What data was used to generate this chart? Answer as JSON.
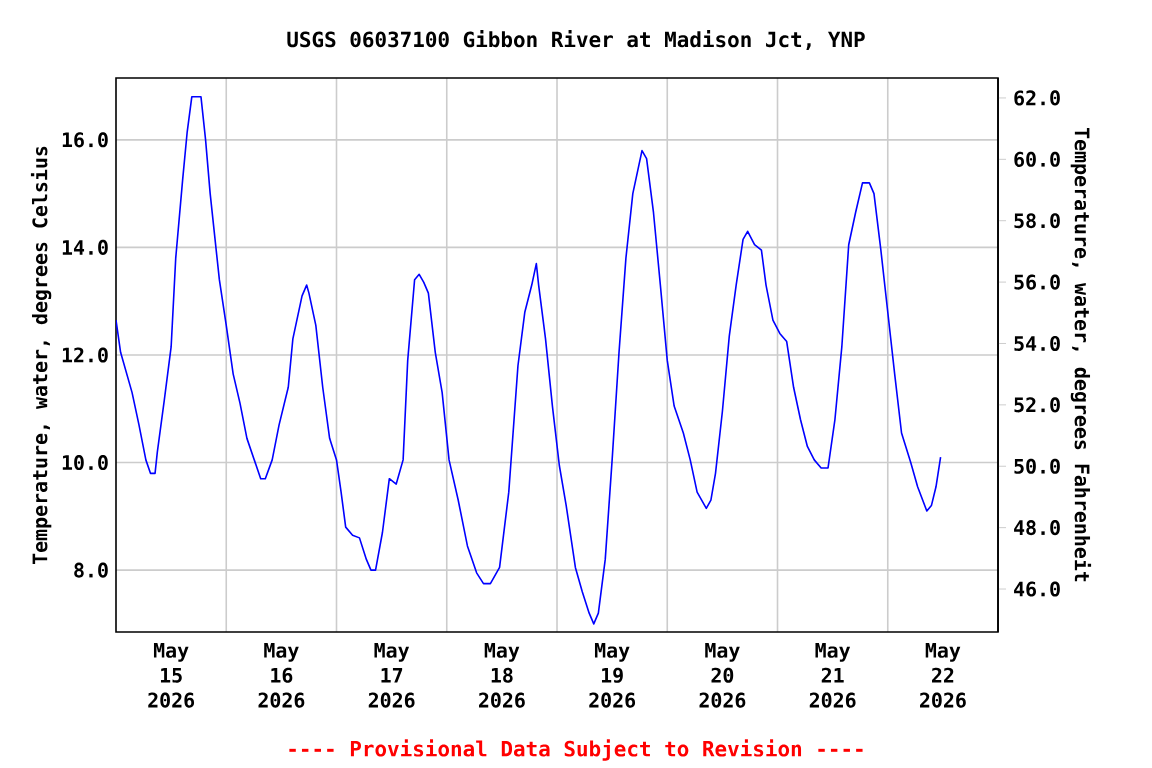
{
  "chart_data": {
    "type": "line",
    "title": "USGS 06037100 Gibbon River at Madison Jct, YNP",
    "ylabel": "Temperature, water, degrees Celsius",
    "y2label": "Temperature, water, degrees Fahrenheit",
    "annotations": [
      "---- Provisional Data Subject to Revision ----"
    ],
    "xlim": [
      "2026-05-15T00:00",
      "2026-05-23T00:00"
    ],
    "xticks": [
      {
        "value": "2026-05-15T12:00",
        "label": "May 15 2026"
      },
      {
        "value": "2026-05-16T12:00",
        "label": "May 16 2026"
      },
      {
        "value": "2026-05-17T12:00",
        "label": "May 17 2026"
      },
      {
        "value": "2026-05-18T12:00",
        "label": "May 18 2026"
      },
      {
        "value": "2026-05-19T12:00",
        "label": "May 19 2026"
      },
      {
        "value": "2026-05-20T12:00",
        "label": "May 20 2026"
      },
      {
        "value": "2026-05-21T12:00",
        "label": "May 21 2026"
      },
      {
        "value": "2026-05-22T12:00",
        "label": "May 22 2026"
      },
      {
        "value": "2026-05-16",
        "label": null
      },
      {
        "value": "2026-05-17",
        "label": null
      },
      {
        "value": "2026-05-18",
        "label": null
      },
      {
        "value": "2026-05-19",
        "label": null
      },
      {
        "value": "2026-05-20",
        "label": null
      },
      {
        "value": "2026-05-21",
        "label": null
      },
      {
        "value": "2026-05-22",
        "label": null
      }
    ],
    "ylim": [
      6.85,
      17.15
    ],
    "yticks": [
      {
        "value": 8,
        "label": "8.0"
      },
      {
        "value": 10,
        "label": "10.0"
      },
      {
        "value": 12,
        "label": "12.0"
      },
      {
        "value": 14,
        "label": "14.0"
      },
      {
        "value": 16,
        "label": "16.0"
      }
    ],
    "y2lim": [
      44.6,
      62.65
    ],
    "y2ticks": [
      {
        "value": 46,
        "label": "46.0"
      },
      {
        "value": 48,
        "label": "48.0"
      },
      {
        "value": 50,
        "label": "50.0"
      },
      {
        "value": 52,
        "label": "52.0"
      },
      {
        "value": 54,
        "label": "54.0"
      },
      {
        "value": 56,
        "label": "56.0"
      },
      {
        "value": 58,
        "label": "58.0"
      },
      {
        "value": 60,
        "label": "60.0"
      },
      {
        "value": 62,
        "label": "62.0"
      }
    ],
    "grid": true,
    "x": [
      "2026-05-15T00:00",
      "2026-05-15T01:00",
      "2026-05-15T03:30",
      "2026-05-15T05:00",
      "2026-05-15T06:30",
      "2026-05-15T07:30",
      "2026-05-15T08:30",
      "2026-05-15T09:00",
      "2026-05-15T10:30",
      "2026-05-15T12:00",
      "2026-05-15T13:00",
      "2026-05-15T14:30",
      "2026-05-15T15:30",
      "2026-05-15T16:30",
      "2026-05-15T18:30",
      "2026-05-15T19:30",
      "2026-05-15T20:30",
      "2026-05-15T22:30",
      "2026-05-16T00:00",
      "2026-05-16T01:30",
      "2026-05-16T03:00",
      "2026-05-16T04:30",
      "2026-05-16T06:30",
      "2026-05-16T07:30",
      "2026-05-16T08:30",
      "2026-05-16T10:00",
      "2026-05-16T11:30",
      "2026-05-16T13:30",
      "2026-05-16T14:30",
      "2026-05-16T16:30",
      "2026-05-16T17:30",
      "2026-05-16T18:00",
      "2026-05-16T19:30",
      "2026-05-16T21:00",
      "2026-05-16T22:30",
      "2026-05-17T00:00",
      "2026-05-17T01:00",
      "2026-05-17T02:00",
      "2026-05-17T03:30",
      "2026-05-17T05:00",
      "2026-05-17T06:30",
      "2026-05-17T07:30",
      "2026-05-17T08:30",
      "2026-05-17T10:00",
      "2026-05-17T11:30",
      "2026-05-17T13:00",
      "2026-05-17T14:30",
      "2026-05-17T15:30",
      "2026-05-17T17:00",
      "2026-05-17T18:00",
      "2026-05-17T19:00",
      "2026-05-17T20:00",
      "2026-05-17T21:30",
      "2026-05-17T23:00",
      "2026-05-18T00:30",
      "2026-05-18T02:30",
      "2026-05-18T04:30",
      "2026-05-18T06:30",
      "2026-05-18T08:00",
      "2026-05-18T09:30",
      "2026-05-18T11:30",
      "2026-05-18T13:30",
      "2026-05-18T15:30",
      "2026-05-18T17:00",
      "2026-05-18T18:30",
      "2026-05-18T19:30",
      "2026-05-18T20:00",
      "2026-05-18T21:30",
      "2026-05-18T23:00",
      "2026-05-19T00:30",
      "2026-05-19T02:00",
      "2026-05-19T04:00",
      "2026-05-19T05:30",
      "2026-05-19T07:00",
      "2026-05-19T08:00",
      "2026-05-19T09:00",
      "2026-05-19T10:30",
      "2026-05-19T12:00",
      "2026-05-19T13:30",
      "2026-05-19T15:00",
      "2026-05-19T16:30",
      "2026-05-19T18:30",
      "2026-05-19T19:30",
      "2026-05-19T21:00",
      "2026-05-19T22:30",
      "2026-05-20T00:00",
      "2026-05-20T01:30",
      "2026-05-20T03:30",
      "2026-05-20T05:00",
      "2026-05-20T06:30",
      "2026-05-20T08:30",
      "2026-05-20T09:30",
      "2026-05-20T10:30",
      "2026-05-20T12:00",
      "2026-05-20T13:30",
      "2026-05-20T15:00",
      "2026-05-20T16:30",
      "2026-05-20T17:30",
      "2026-05-20T19:00",
      "2026-05-20T20:30",
      "2026-05-20T21:30",
      "2026-05-20T23:00",
      "2026-05-21T00:30",
      "2026-05-21T02:00",
      "2026-05-21T03:30",
      "2026-05-21T05:00",
      "2026-05-21T06:30",
      "2026-05-21T08:00",
      "2026-05-21T09:30",
      "2026-05-21T11:00",
      "2026-05-21T12:30",
      "2026-05-21T14:00",
      "2026-05-21T15:30",
      "2026-05-21T17:00",
      "2026-05-21T18:30",
      "2026-05-21T20:00",
      "2026-05-21T21:00",
      "2026-05-21T22:30",
      "2026-05-22T00:00",
      "2026-05-22T01:30",
      "2026-05-22T03:00",
      "2026-05-22T05:00",
      "2026-05-22T06:30",
      "2026-05-22T08:30",
      "2026-05-22T09:30",
      "2026-05-22T10:30",
      "2026-05-22T11:30"
    ],
    "series": [
      {
        "color": "#0000ff",
        "values": [
          12.65,
          12.05,
          11.3,
          10.7,
          10.05,
          9.8,
          9.8,
          10.2,
          11.15,
          12.15,
          13.8,
          15.25,
          16.15,
          16.8,
          16.8,
          16.0,
          15.0,
          13.4,
          12.55,
          11.65,
          11.1,
          10.45,
          9.95,
          9.7,
          9.7,
          10.05,
          10.7,
          11.4,
          12.3,
          13.1,
          13.3,
          13.15,
          12.55,
          11.4,
          10.45,
          10.05,
          9.45,
          8.8,
          8.65,
          8.6,
          8.2,
          8.0,
          8.0,
          8.7,
          9.7,
          9.6,
          10.05,
          11.9,
          13.4,
          13.5,
          13.35,
          13.15,
          12.05,
          11.3,
          10.05,
          9.3,
          8.45,
          7.95,
          7.75,
          7.75,
          8.05,
          9.45,
          11.8,
          12.8,
          13.3,
          13.7,
          13.3,
          12.3,
          11.05,
          9.95,
          9.2,
          8.05,
          7.6,
          7.2,
          7.0,
          7.2,
          8.2,
          10.05,
          12.05,
          13.8,
          15.0,
          15.8,
          15.65,
          14.65,
          13.3,
          11.9,
          11.05,
          10.55,
          10.05,
          9.45,
          9.15,
          9.3,
          9.8,
          10.95,
          12.35,
          13.3,
          14.15,
          14.3,
          14.05,
          13.95,
          13.3,
          12.65,
          12.4,
          12.25,
          11.4,
          10.8,
          10.3,
          10.05,
          9.9,
          9.9,
          10.8,
          12.15,
          14.05,
          14.65,
          15.2,
          15.2,
          15.0,
          13.95,
          12.8,
          11.65,
          10.55,
          10.0,
          9.55,
          9.1,
          9.2,
          9.55,
          10.1
        ]
      }
    ]
  }
}
